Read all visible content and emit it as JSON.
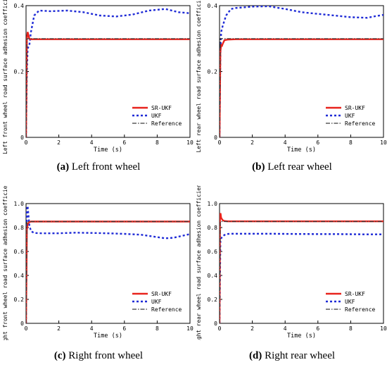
{
  "captions": [
    {
      "letter": "(a)",
      "text": " Left front wheel"
    },
    {
      "letter": "(b)",
      "text": " Left rear wheel"
    },
    {
      "letter": "(c)",
      "text": " Right front wheel"
    },
    {
      "letter": "(d)",
      "text": " Right rear wheel"
    }
  ],
  "colors": {
    "sr_ukf": "#e8231c",
    "ukf": "#1f2bd6",
    "reference": "#3a3a3a",
    "reference_dash_alt": "#c08020"
  },
  "chart_data": [
    {
      "type": "line",
      "panel": "a",
      "xlabel": "Time (s)",
      "ylabel": "Left front wheel road surface adhesion coefficient",
      "xlim": [
        0,
        10
      ],
      "ylim": [
        0,
        0.4
      ],
      "xticks": [
        "0",
        "2",
        "4",
        "6",
        "8",
        "10"
      ],
      "yticks": [
        "0",
        "0.2",
        "0.4"
      ],
      "legend_position": "bottom-right",
      "series": [
        {
          "name": "SR-UKF",
          "style": "solid",
          "x": [
            0,
            0.05,
            0.1,
            0.15,
            0.2,
            0.3,
            0.5,
            1,
            2,
            3,
            4,
            5,
            6,
            7,
            8,
            9,
            10
          ],
          "y": [
            0,
            0.3,
            0.32,
            0.31,
            0.3,
            0.298,
            0.298,
            0.298,
            0.298,
            0.298,
            0.298,
            0.298,
            0.298,
            0.298,
            0.298,
            0.298,
            0.298
          ]
        },
        {
          "name": "UKF",
          "style": "dotted",
          "x": [
            0,
            0.05,
            0.1,
            0.2,
            0.3,
            0.5,
            0.8,
            1.5,
            2.5,
            3.5,
            4.5,
            5.5,
            6.5,
            7.5,
            8.5,
            9.3,
            10
          ],
          "y": [
            0,
            0.2,
            0.27,
            0.28,
            0.32,
            0.37,
            0.385,
            0.383,
            0.385,
            0.38,
            0.37,
            0.367,
            0.373,
            0.385,
            0.39,
            0.38,
            0.377
          ]
        },
        {
          "name": "Reference",
          "style": "dashdot",
          "x": [
            0,
            0.05,
            0.1,
            10
          ],
          "y": [
            0,
            0.3,
            0.3,
            0.3
          ]
        }
      ]
    },
    {
      "type": "line",
      "panel": "b",
      "xlabel": "Time (s)",
      "ylabel": "Left rear wheel road surface adhesion coefficient",
      "xlim": [
        0,
        10
      ],
      "ylim": [
        0,
        0.4
      ],
      "xticks": [
        "0",
        "2",
        "4",
        "6",
        "8",
        "10"
      ],
      "yticks": [
        "0",
        "0.2",
        "0.4"
      ],
      "legend_position": "bottom-right",
      "series": [
        {
          "name": "SR-UKF",
          "style": "solid",
          "x": [
            0,
            0.05,
            0.1,
            0.15,
            0.2,
            0.3,
            0.5,
            1,
            2,
            4,
            6,
            8,
            10
          ],
          "y": [
            0,
            0.26,
            0.28,
            0.278,
            0.285,
            0.295,
            0.297,
            0.298,
            0.298,
            0.298,
            0.298,
            0.298,
            0.298
          ]
        },
        {
          "name": "UKF",
          "style": "dotted",
          "x": [
            0,
            0.05,
            0.1,
            0.2,
            0.4,
            0.7,
            1,
            2,
            3,
            4,
            5,
            6,
            7,
            8,
            9,
            9.5,
            10
          ],
          "y": [
            0,
            0.25,
            0.32,
            0.34,
            0.37,
            0.39,
            0.393,
            0.397,
            0.398,
            0.39,
            0.38,
            0.375,
            0.37,
            0.365,
            0.363,
            0.368,
            0.372
          ]
        },
        {
          "name": "Reference",
          "style": "dashdot",
          "x": [
            0,
            0.05,
            0.1,
            10
          ],
          "y": [
            0,
            0.3,
            0.3,
            0.3
          ]
        }
      ]
    },
    {
      "type": "line",
      "panel": "c",
      "xlabel": "Time (s)",
      "ylabel": "Right front wheel road surface adhesion coefficient",
      "xlim": [
        0,
        10
      ],
      "ylim": [
        0,
        1.0
      ],
      "xticks": [
        "0",
        "2",
        "4",
        "6",
        "8",
        "10"
      ],
      "yticks": [
        "0",
        "0.2",
        "0.4",
        "0.6",
        "0.8",
        "1.0"
      ],
      "legend_position": "bottom-right",
      "series": [
        {
          "name": "SR-UKF",
          "style": "solid",
          "x": [
            0,
            0.05,
            0.1,
            0.2,
            0.3,
            0.5,
            1,
            2,
            4,
            6,
            8,
            10
          ],
          "y": [
            0,
            0.78,
            0.83,
            0.845,
            0.85,
            0.85,
            0.85,
            0.85,
            0.85,
            0.85,
            0.85,
            0.85
          ]
        },
        {
          "name": "UKF",
          "style": "dotted",
          "x": [
            0,
            0.05,
            0.1,
            0.15,
            0.2,
            0.3,
            0.5,
            1,
            2,
            3,
            4,
            5,
            6,
            7,
            8,
            8.5,
            9,
            9.5,
            10
          ],
          "y": [
            0,
            0.95,
            0.98,
            0.9,
            0.82,
            0.77,
            0.755,
            0.752,
            0.752,
            0.757,
            0.755,
            0.752,
            0.747,
            0.74,
            0.72,
            0.71,
            0.715,
            0.73,
            0.745
          ]
        },
        {
          "name": "Reference",
          "style": "dashdot",
          "x": [
            0,
            0.05,
            0.1,
            10
          ],
          "y": [
            0,
            0.85,
            0.85,
            0.85
          ]
        }
      ]
    },
    {
      "type": "line",
      "panel": "d",
      "xlabel": "Time (s)",
      "ylabel": "Right rear wheel road surface adhesion coefficient",
      "xlim": [
        0,
        10
      ],
      "ylim": [
        0,
        1.0
      ],
      "xticks": [
        "0",
        "2",
        "4",
        "6",
        "8",
        "10"
      ],
      "yticks": [
        "0",
        "0.2",
        "0.4",
        "0.6",
        "0.8",
        "1.0"
      ],
      "legend_position": "bottom-right",
      "series": [
        {
          "name": "SR-UKF",
          "style": "solid",
          "x": [
            0,
            0.03,
            0.06,
            0.1,
            0.2,
            0.3,
            0.5,
            1,
            2,
            4,
            6,
            8,
            10
          ],
          "y": [
            0,
            0.9,
            0.92,
            0.88,
            0.86,
            0.855,
            0.852,
            0.852,
            0.852,
            0.852,
            0.852,
            0.852,
            0.852
          ]
        },
        {
          "name": "UKF",
          "style": "dotted",
          "x": [
            0,
            0.05,
            0.1,
            0.2,
            0.4,
            0.7,
            1,
            2,
            3,
            4,
            5,
            6,
            7,
            8,
            9,
            10
          ],
          "y": [
            0,
            0.68,
            0.71,
            0.73,
            0.745,
            0.748,
            0.748,
            0.748,
            0.748,
            0.747,
            0.746,
            0.745,
            0.745,
            0.744,
            0.743,
            0.743
          ]
        },
        {
          "name": "Reference",
          "style": "dashdot",
          "x": [
            0,
            0.05,
            0.1,
            10
          ],
          "y": [
            0,
            0.85,
            0.85,
            0.85
          ]
        }
      ]
    }
  ]
}
